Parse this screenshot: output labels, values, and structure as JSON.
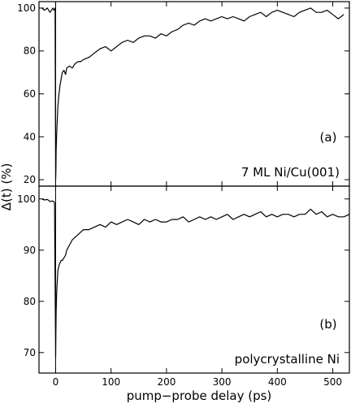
{
  "chart_data": [
    {
      "type": "line",
      "panel_label": "(a)",
      "sample_label": "7 ML Ni/Cu(001)",
      "xlim": [
        -30,
        530
      ],
      "ylim": [
        17,
        103
      ],
      "xticks": [
        0,
        100,
        200,
        300,
        400,
        500
      ],
      "yticks": [
        20,
        40,
        60,
        80,
        100
      ],
      "series": [
        {
          "x": [
            -25,
            -20,
            -15,
            -10,
            -5,
            -3,
            -1,
            0,
            0.5,
            1,
            2,
            3,
            4,
            6,
            8,
            10,
            12,
            15,
            18,
            20,
            25,
            30,
            35,
            40,
            45,
            50,
            60,
            70,
            80,
            90,
            100,
            110,
            120,
            130,
            140,
            150,
            160,
            170,
            180,
            190,
            200,
            210,
            220,
            230,
            240,
            250,
            260,
            270,
            280,
            290,
            300,
            310,
            320,
            330,
            340,
            350,
            360,
            370,
            380,
            390,
            400,
            410,
            420,
            430,
            440,
            450,
            460,
            470,
            480,
            490,
            500,
            510,
            520
          ],
          "y": [
            100,
            99,
            100,
            98,
            100,
            99,
            100,
            20,
            24,
            34,
            42,
            48,
            54,
            60,
            64,
            67,
            70,
            71,
            69,
            72,
            73,
            72,
            74,
            75,
            75,
            76,
            77,
            79,
            81,
            82,
            80,
            82,
            84,
            85,
            84,
            86,
            87,
            87,
            86,
            88,
            87,
            89,
            90,
            92,
            93,
            92,
            94,
            95,
            94,
            95,
            96,
            95,
            96,
            95,
            94,
            96,
            97,
            98,
            96,
            98,
            99,
            98,
            97,
            96,
            98,
            99,
            100,
            98,
            98,
            99,
            97,
            95,
            97
          ]
        }
      ]
    },
    {
      "type": "line",
      "panel_label": "(b)",
      "sample_label": "polycrystalline Ni",
      "xlabel": "pump−probe delay (ps)",
      "xlim": [
        -30,
        530
      ],
      "ylim": [
        66,
        102.5
      ],
      "xticks": [
        0,
        100,
        200,
        300,
        400,
        500
      ],
      "xtick_labels": [
        "0",
        "100",
        "200",
        "300",
        "400",
        "500"
      ],
      "yticks": [
        70,
        80,
        90,
        100
      ],
      "series": [
        {
          "x": [
            -25,
            -20,
            -15,
            -10,
            -5,
            -2,
            0,
            0.5,
            1,
            2,
            3,
            4,
            6,
            8,
            10,
            12,
            15,
            18,
            20,
            25,
            30,
            35,
            40,
            45,
            50,
            60,
            70,
            80,
            90,
            100,
            110,
            120,
            130,
            140,
            150,
            160,
            170,
            180,
            190,
            200,
            210,
            220,
            230,
            240,
            250,
            260,
            270,
            280,
            290,
            300,
            310,
            320,
            330,
            340,
            350,
            360,
            370,
            380,
            390,
            400,
            410,
            420,
            430,
            440,
            450,
            460,
            470,
            480,
            490,
            500,
            510,
            520,
            530
          ],
          "y": [
            100,
            99.8,
            99.9,
            99.5,
            99.6,
            99.3,
            69,
            74,
            78,
            82,
            84,
            86,
            87,
            87.5,
            88,
            88,
            88.5,
            89,
            90,
            91,
            92,
            92.5,
            93,
            93.5,
            94,
            94,
            94.5,
            95,
            94.5,
            95.5,
            95,
            95.5,
            96,
            95.5,
            95,
            96,
            95.5,
            96,
            95.5,
            95.5,
            96,
            96,
            96.5,
            95.5,
            96,
            96.5,
            96,
            96.5,
            96,
            96.5,
            97,
            96,
            96.5,
            97,
            96.5,
            97,
            97.5,
            96.5,
            97,
            96.5,
            97,
            97,
            96.5,
            97,
            97,
            98,
            97,
            97.5,
            96.5,
            97,
            96.5,
            96.5,
            97
          ]
        }
      ]
    }
  ],
  "shared": {
    "ylabel": "Δ(t)  (%)"
  }
}
